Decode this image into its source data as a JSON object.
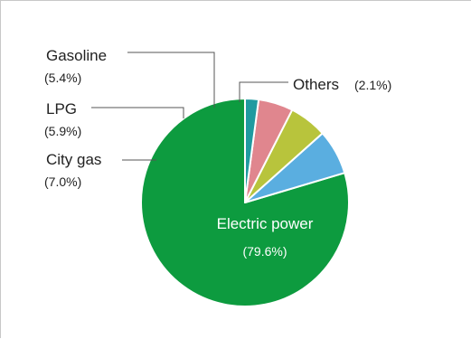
{
  "chart_data": {
    "type": "pie",
    "title": "",
    "slices": [
      {
        "label": "Electric power",
        "value": 79.6,
        "value_text": "(79.6%)",
        "color": "#0d9b3f"
      },
      {
        "label": "City gas",
        "value": 7.0,
        "value_text": "(7.0%)",
        "color": "#5aaee0"
      },
      {
        "label": "LPG",
        "value": 5.9,
        "value_text": "(5.9%)",
        "color": "#b8c43c"
      },
      {
        "label": "Gasoline",
        "value": 5.4,
        "value_text": "(5.4%)",
        "color": "#e0868e"
      },
      {
        "label": "Others",
        "value": 2.1,
        "value_text": "(2.1%)",
        "color": "#1f9aa0"
      }
    ],
    "start": "12 o'clock",
    "direction": "counterclockwise",
    "legend": "none"
  }
}
